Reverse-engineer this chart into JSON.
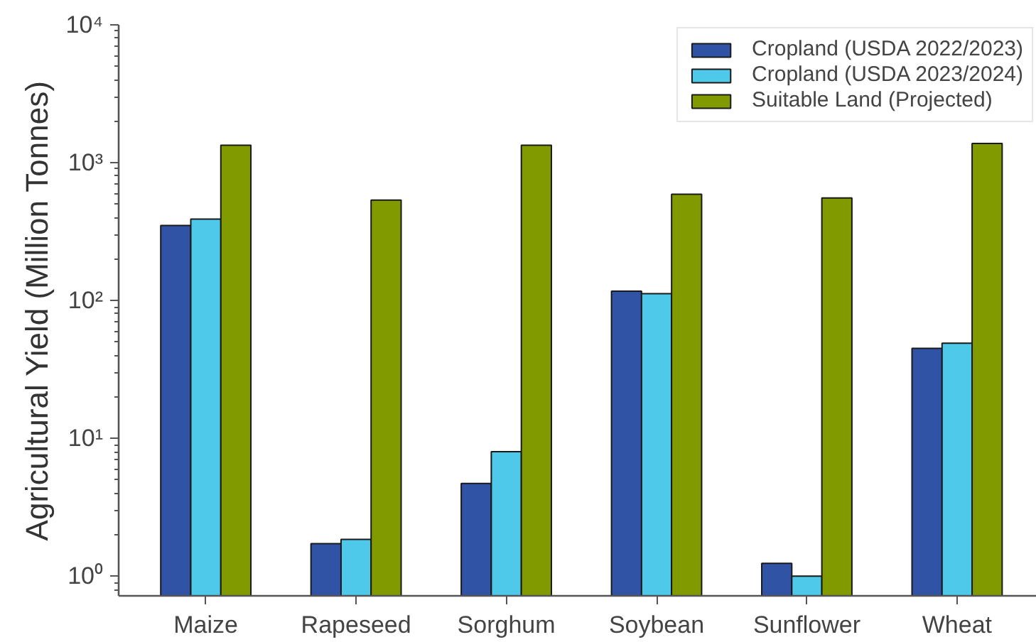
{
  "chart_data": {
    "type": "bar",
    "ylabel": "Agricultural Yield (Million Tonnes)",
    "categories": [
      "Maize",
      "Rapeseed",
      "Sorghum",
      "Soybean",
      "Sunflower",
      "Wheat"
    ],
    "series": [
      {
        "name": "Cropland (USDA 2022/2023)",
        "color": "#3053a5",
        "values": [
          350,
          1.72,
          4.7,
          117,
          1.24,
          45
        ]
      },
      {
        "name": "Cropland (USDA 2023/2024)",
        "color": "#4ec9ea",
        "values": [
          390,
          1.85,
          8.0,
          112,
          1.0,
          49
        ]
      },
      {
        "name": "Suitable Land (Projected)",
        "color": "#819a00",
        "values": [
          1340,
          535,
          1340,
          590,
          555,
          1380
        ]
      }
    ],
    "log": true,
    "ylim": [
      0.72,
      10000
    ],
    "yticks": [
      {
        "value": 1,
        "label": "10⁰"
      },
      {
        "value": 10,
        "label": "10¹"
      },
      {
        "value": 100,
        "label": "10²"
      },
      {
        "value": 1000,
        "label": "10³"
      },
      {
        "value": 10000,
        "label": "10⁴"
      }
    ],
    "legend": "top right",
    "grid": false
  }
}
